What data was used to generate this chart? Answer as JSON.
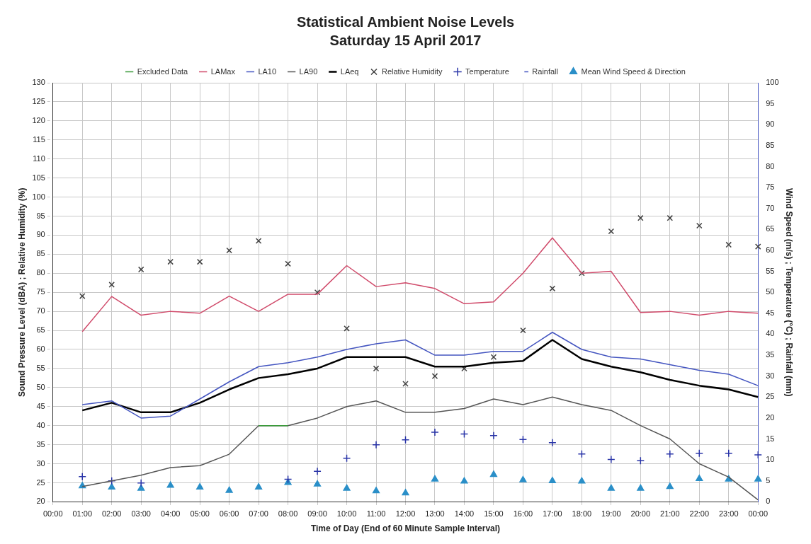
{
  "chart_data": {
    "type": "line",
    "title": "Statistical Ambient Noise Levels",
    "subtitle": "Saturday 15 April 2017",
    "xlabel": "Time of Day (End of 60 Minute Sample Interval)",
    "ylabel": "Sound Pressure Level (dBA) ; Relative Humidity (%)",
    "y2label": "Wind Speed (m/s) ; Temperature (°C) ; Rainfall (mm)",
    "categories": [
      "00:00",
      "01:00",
      "02:00",
      "03:00",
      "04:00",
      "05:00",
      "06:00",
      "07:00",
      "08:00",
      "09:00",
      "10:00",
      "11:00",
      "12:00",
      "13:00",
      "14:00",
      "15:00",
      "16:00",
      "17:00",
      "18:00",
      "19:00",
      "20:00",
      "21:00",
      "22:00",
      "23:00",
      "00:00"
    ],
    "ylim": [
      20,
      130
    ],
    "yticks": [
      20,
      25,
      30,
      35,
      40,
      45,
      50,
      55,
      60,
      65,
      70,
      75,
      80,
      85,
      90,
      95,
      100,
      105,
      110,
      115,
      120,
      125,
      130
    ],
    "y2lim": [
      0,
      100
    ],
    "y2ticks": [
      0,
      5,
      10,
      15,
      20,
      25,
      30,
      35,
      40,
      45,
      50,
      55,
      60,
      65,
      70,
      75,
      80,
      85,
      90,
      95,
      100
    ],
    "grid": true,
    "legend": "top",
    "line_style": "solid",
    "series": [
      {
        "name": "Excluded Data",
        "color": "#3a9a3a",
        "values": [
          null,
          null,
          null,
          null,
          null,
          null,
          null,
          40,
          40,
          null,
          null,
          null,
          null,
          null,
          null,
          null,
          null,
          null,
          null,
          null,
          null,
          null,
          null,
          null,
          null
        ]
      },
      {
        "name": "LAMax",
        "color": "#d04a6a",
        "values": [
          null,
          64.7,
          73.9,
          69,
          70,
          69.5,
          74,
          70,
          74.5,
          74.5,
          82,
          76.5,
          77.5,
          76,
          72,
          72.5,
          80,
          89.3,
          80,
          80.5,
          69.7,
          70,
          69,
          70,
          69.5
        ]
      },
      {
        "name": "LA10",
        "color": "#4455c0",
        "values": [
          null,
          45.5,
          46.5,
          42,
          42.5,
          47,
          51.5,
          55.5,
          56.5,
          58,
          60,
          61.5,
          62.5,
          58.5,
          58.5,
          59.5,
          59.5,
          64.5,
          60,
          58,
          57.5,
          56,
          54.5,
          53.5,
          50.5
        ]
      },
      {
        "name": "LA90",
        "color": "#555555",
        "values": [
          null,
          24,
          25.5,
          27,
          29,
          29.5,
          32.5,
          40,
          40,
          42,
          45,
          46.5,
          43.5,
          43.5,
          44.5,
          47,
          45.5,
          47.5,
          45.5,
          44,
          40,
          36.5,
          30,
          26.5,
          20.5
        ]
      },
      {
        "name": "LAeq",
        "color": "#000000",
        "values": [
          null,
          44,
          46,
          43.5,
          43.5,
          46,
          49.5,
          52.5,
          53.5,
          55,
          58,
          58,
          58,
          55.5,
          55.5,
          56.5,
          57,
          62.5,
          57.5,
          55.5,
          54,
          52,
          50.5,
          49.5,
          47.5
        ]
      },
      {
        "name": "Relative Humidity",
        "type": "scatter",
        "marker": "x",
        "color": "#404040",
        "values": [
          null,
          74,
          77,
          81,
          83,
          83,
          86,
          88.5,
          82.5,
          75,
          65.5,
          55,
          51,
          53,
          55,
          58,
          65,
          76,
          80,
          91,
          94.5,
          94.5,
          92.5,
          87.5,
          87
        ]
      },
      {
        "name": "Temperature",
        "type": "scatter",
        "marker": "cross",
        "axis": "y2",
        "color": "#2a35a8",
        "values": [
          null,
          6,
          5,
          4.5,
          null,
          null,
          null,
          null,
          5.4,
          7.3,
          10.4,
          13.6,
          14.8,
          16.6,
          16.2,
          15.8,
          14.9,
          14.1,
          11.4,
          10.1,
          9.8,
          11.4,
          11.6,
          11.6,
          11.2
        ]
      },
      {
        "name": "Rainfall",
        "type": "scatter",
        "marker": "dash",
        "axis": "y2",
        "color": "#4455c0",
        "values": [
          null,
          null,
          null,
          null,
          null,
          null,
          null,
          null,
          null,
          null,
          null,
          null,
          null,
          null,
          null,
          null,
          null,
          null,
          null,
          null,
          null,
          null,
          null,
          null,
          null
        ]
      },
      {
        "name": "Mean Wind Speed & Direction",
        "type": "scatter",
        "marker": "triangle",
        "axis": "y2",
        "color": "#2a8fc8",
        "values": [
          null,
          3.8,
          3.5,
          3.2,
          3.9,
          3.5,
          2.7,
          3.5,
          4.6,
          4.2,
          3.2,
          2.6,
          2.1,
          5.4,
          4.9,
          6.5,
          5.2,
          5,
          4.9,
          3.2,
          3.2,
          3.6,
          5.5,
          5.4,
          5.4
        ]
      }
    ]
  }
}
